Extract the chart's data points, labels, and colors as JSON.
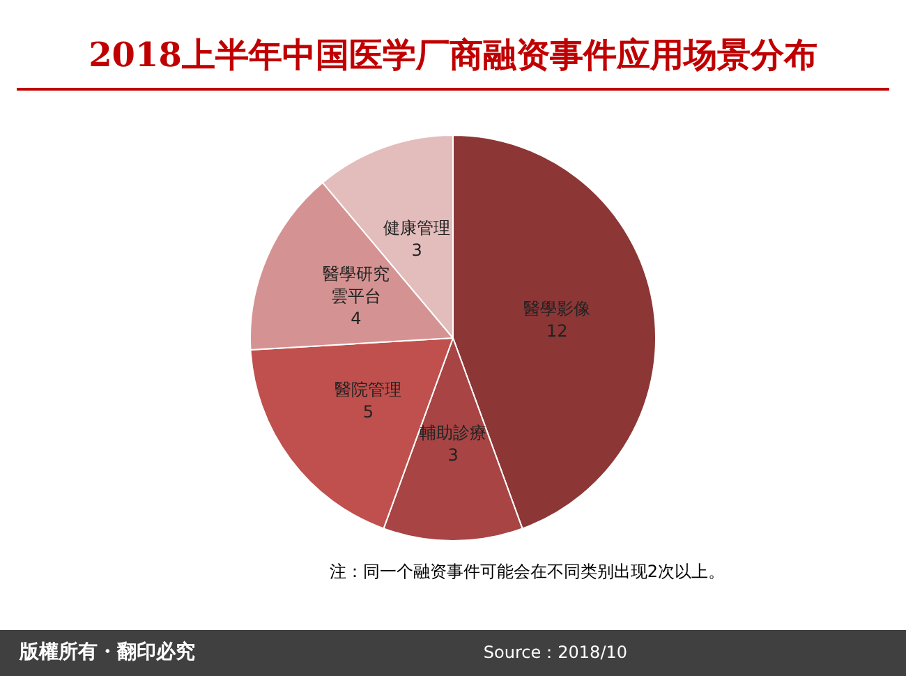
{
  "chart_data": {
    "type": "pie",
    "title": "2018上半年中国医学厂商融资事件应用场景分布",
    "categories": [
      "醫學影像",
      "輔助診療",
      "醫院管理",
      "醫學研究雲平台",
      "健康管理"
    ],
    "values": [
      12,
      3,
      5,
      4,
      3
    ],
    "colors": [
      "#8c3636",
      "#a84444",
      "#c0504d",
      "#d49392",
      "#e3bcbc"
    ],
    "data_labels": true,
    "legend": false,
    "annotations": [
      "注：同一个融资事件可能会在不同类别出现2次以上。",
      "版權所有・翻印必究",
      "Source：2018/10"
    ]
  }
}
